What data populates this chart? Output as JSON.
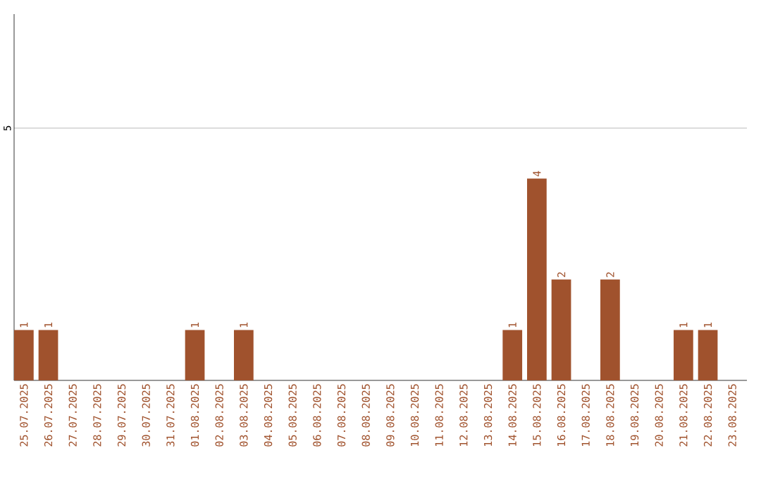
{
  "chart_data": {
    "type": "bar",
    "categories": [
      "25.07.2025",
      "26.07.2025",
      "27.07.2025",
      "28.07.2025",
      "29.07.2025",
      "30.07.2025",
      "31.07.2025",
      "01.08.2025",
      "02.08.2025",
      "03.08.2025",
      "04.08.2025",
      "05.08.2025",
      "06.08.2025",
      "07.08.2025",
      "08.08.2025",
      "09.08.2025",
      "10.08.2025",
      "11.08.2025",
      "12.08.2025",
      "13.08.2025",
      "14.08.2025",
      "15.08.2025",
      "16.08.2025",
      "17.08.2025",
      "18.08.2025",
      "19.08.2025",
      "20.08.2025",
      "21.08.2025",
      "22.08.2025",
      "23.08.2025"
    ],
    "values": [
      1,
      1,
      0,
      0,
      0,
      0,
      0,
      1,
      0,
      1,
      0,
      0,
      0,
      0,
      0,
      0,
      0,
      0,
      0,
      0,
      1,
      4,
      2,
      0,
      2,
      0,
      0,
      1,
      1,
      0
    ],
    "value_labels": [
      "1",
      "1",
      null,
      null,
      null,
      null,
      null,
      "1",
      null,
      "1",
      null,
      null,
      null,
      null,
      null,
      null,
      null,
      null,
      null,
      null,
      "1",
      "4",
      "2",
      null,
      "2",
      null,
      null,
      "1",
      "1",
      null
    ],
    "color": "#a0522d",
    "ylim": [
      0,
      7.26
    ],
    "yticks": [
      5
    ],
    "grid": "y"
  }
}
